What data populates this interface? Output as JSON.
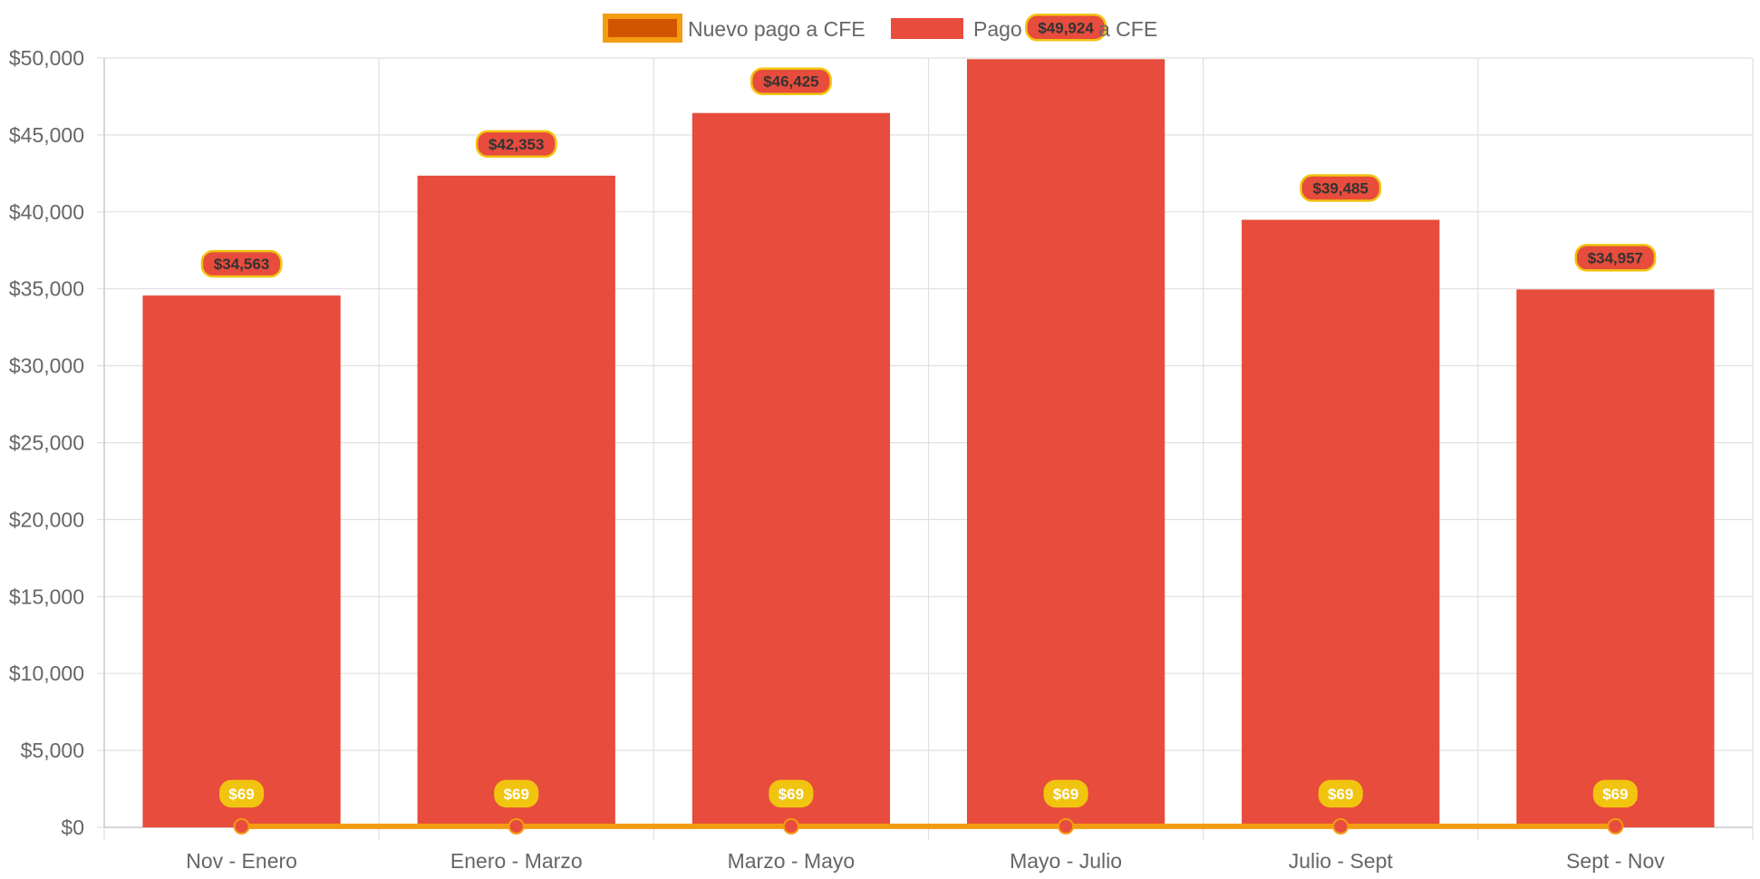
{
  "chart_data": {
    "type": "bar",
    "categories": [
      "Nov - Enero",
      "Enero - Marzo",
      "Marzo - Mayo",
      "Mayo - Julio",
      "Julio - Sept",
      "Sept - Nov"
    ],
    "series": [
      {
        "name": "Nuevo pago a CFE",
        "type": "line",
        "values": [
          69,
          69,
          69,
          69,
          69,
          69
        ],
        "data_labels": [
          "$69",
          "$69",
          "$69",
          "$69",
          "$69",
          "$69"
        ],
        "color": "#F39C12",
        "point_color": "#E74C3C",
        "label_bg": "#F1C40F",
        "label_text_color": "#ffffff"
      },
      {
        "name": "Pago actual a CFE",
        "type": "bar",
        "values": [
          34563,
          42353,
          46425,
          49924,
          39485,
          34957
        ],
        "data_labels": [
          "$34,563",
          "$42,353",
          "$46,425",
          "$49,924",
          "$39,485",
          "$34,957"
        ],
        "color": "#E74C3C",
        "label_bg": "#E74C3C",
        "label_border": "#F1C40F",
        "label_text_color": "#333333"
      }
    ],
    "legend_labels": [
      "Nuevo pago a CFE",
      "Pago",
      "a CFE"
    ],
    "legend_swatch_colors": {
      "line_fill": "#D35400",
      "line_border": "#F39C12",
      "bar": "#E74C3C"
    },
    "ylim": [
      0,
      50000
    ],
    "yticks": [
      0,
      5000,
      10000,
      15000,
      20000,
      25000,
      30000,
      35000,
      40000,
      45000,
      50000
    ],
    "ytick_labels": [
      "$0",
      "$5,000",
      "$10,000",
      "$15,000",
      "$20,000",
      "$25,000",
      "$30,000",
      "$35,000",
      "$40,000",
      "$45,000",
      "$50,000"
    ],
    "grid": true,
    "legend_position": "top-center",
    "xlabel": "",
    "ylabel": "",
    "title": ""
  }
}
